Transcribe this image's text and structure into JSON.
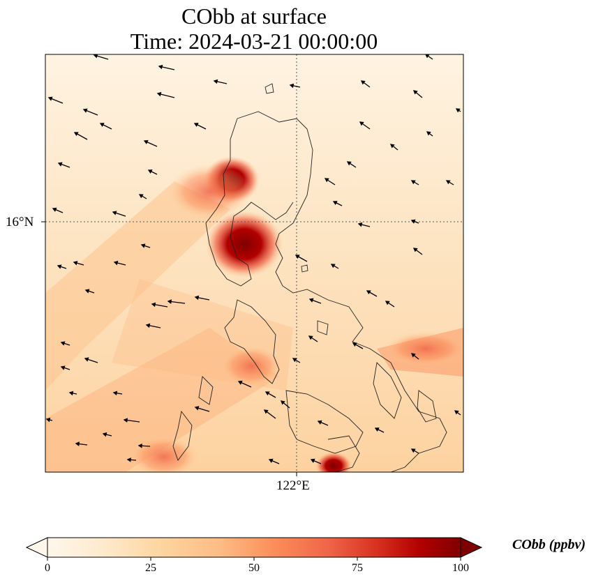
{
  "title": {
    "line1": "CObb at surface",
    "line2": "Time: 2024-03-21 00:00:00"
  },
  "axes": {
    "lat_label": "16°N",
    "lon_label": "122°E"
  },
  "colorbar": {
    "ticks": [
      "0",
      "25",
      "50",
      "75",
      "100"
    ],
    "unit_label": "CObb (ppbv)",
    "colormap": "OrRd",
    "min": 0,
    "max": 100,
    "extend": "both"
  },
  "colors": {
    "low": "#fff7ec",
    "mid": "#fdd49e",
    "high": "#ef6548",
    "max": "#7f0000",
    "coast": "#222222",
    "arrow": "#000000",
    "grid": "#555555"
  }
}
